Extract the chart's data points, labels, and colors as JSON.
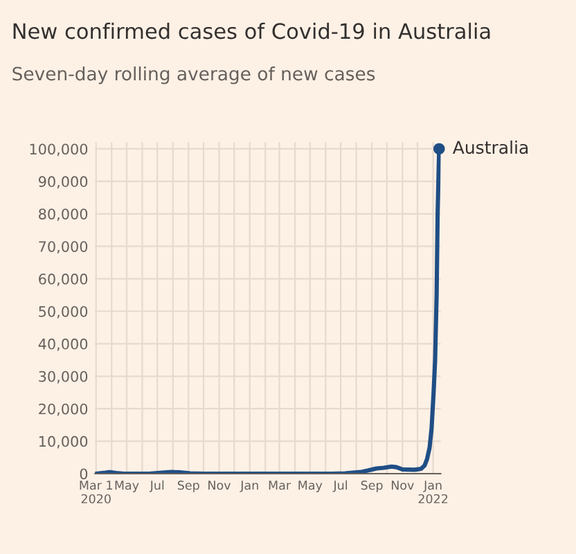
{
  "chart_data": {
    "type": "line",
    "title": "New confirmed cases of Covid-19 in Australia",
    "subtitle": "Seven-day rolling average of new cases",
    "x": [
      "2020-03-01",
      "2020-03-20",
      "2020-03-28",
      "2020-04-10",
      "2020-04-25",
      "2020-06-15",
      "2020-07-10",
      "2020-07-30",
      "2020-08-15",
      "2020-09-05",
      "2020-10-01",
      "2021-06-15",
      "2021-07-10",
      "2021-07-25",
      "2021-08-10",
      "2021-08-25",
      "2021-09-10",
      "2021-09-25",
      "2021-10-10",
      "2021-10-20",
      "2021-11-01",
      "2021-11-25",
      "2021-12-08",
      "2021-12-15",
      "2021-12-20",
      "2021-12-25",
      "2021-12-29",
      "2022-01-02",
      "2022-01-05",
      "2022-01-08",
      "2022-01-10",
      "2022-01-13"
    ],
    "series": [
      {
        "name": "Australia",
        "color": "#1f4e85",
        "values": [
          0,
          300,
          500,
          200,
          0,
          0,
          300,
          500,
          400,
          100,
          0,
          0,
          100,
          300,
          500,
          1000,
          1600,
          1800,
          2200,
          2000,
          1300,
          1200,
          1500,
          2500,
          4500,
          8000,
          14000,
          25000,
          35000,
          55000,
          80000,
          100000
        ]
      }
    ],
    "xlim": [
      "2020-02-28",
      "2022-01-16"
    ],
    "xticks": [
      {
        "value": "2020-03-01",
        "label": "Mar 1\n2020"
      },
      {
        "value": "2020-04-01",
        "label": null
      },
      {
        "value": "2020-05-01",
        "label": "May"
      },
      {
        "value": "2020-06-01",
        "label": null
      },
      {
        "value": "2020-07-01",
        "label": "Jul"
      },
      {
        "value": "2020-08-01",
        "label": null
      },
      {
        "value": "2020-09-01",
        "label": "Sep"
      },
      {
        "value": "2020-10-01",
        "label": null
      },
      {
        "value": "2020-11-01",
        "label": "Nov"
      },
      {
        "value": "2020-12-01",
        "label": null
      },
      {
        "value": "2021-01-01",
        "label": "Jan"
      },
      {
        "value": "2021-02-01",
        "label": null
      },
      {
        "value": "2021-03-01",
        "label": "Mar"
      },
      {
        "value": "2021-04-01",
        "label": null
      },
      {
        "value": "2021-05-01",
        "label": "May"
      },
      {
        "value": "2021-06-01",
        "label": null
      },
      {
        "value": "2021-07-01",
        "label": "Jul"
      },
      {
        "value": "2021-08-01",
        "label": null
      },
      {
        "value": "2021-09-01",
        "label": "Sep"
      },
      {
        "value": "2021-10-01",
        "label": null
      },
      {
        "value": "2021-11-01",
        "label": "Nov"
      },
      {
        "value": "2021-12-01",
        "label": null
      },
      {
        "value": "2022-01-01",
        "label": "Jan\n2022"
      }
    ],
    "ylim": [
      0,
      102000
    ],
    "yticks": [
      {
        "value": 0,
        "label": "0"
      },
      {
        "value": 10000,
        "label": "10,000"
      },
      {
        "value": 20000,
        "label": "20,000"
      },
      {
        "value": 30000,
        "label": "30,000"
      },
      {
        "value": 40000,
        "label": "40,000"
      },
      {
        "value": 50000,
        "label": "50,000"
      },
      {
        "value": 60000,
        "label": "60,000"
      },
      {
        "value": 70000,
        "label": "70,000"
      },
      {
        "value": 80000,
        "label": "80,000"
      },
      {
        "value": 90000,
        "label": "90,000"
      },
      {
        "value": 100000,
        "label": "100,000"
      }
    ],
    "grid": true,
    "legend": false
  }
}
